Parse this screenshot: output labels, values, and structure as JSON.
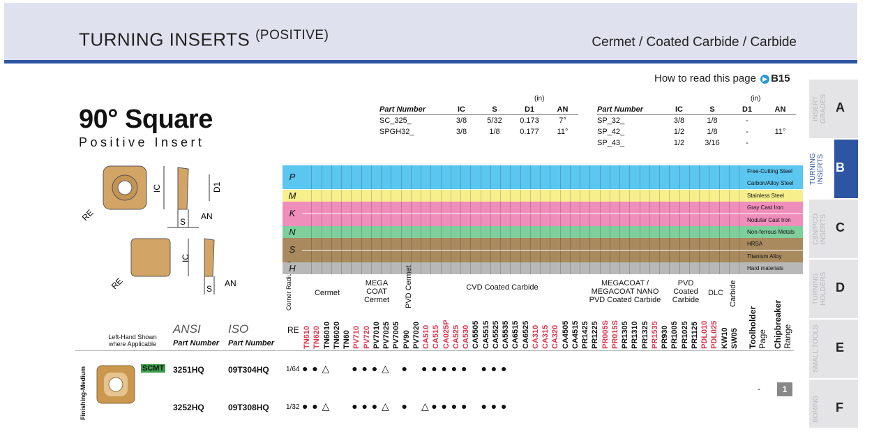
{
  "header": {
    "title": "TURNING INSERTS",
    "title_suffix": "(POSITIVE)",
    "materials": "Cermet / Coated Carbide / Carbide"
  },
  "how_to_read": {
    "text": "How to read this page",
    "ref": "B15"
  },
  "heading": {
    "title": "90° Square",
    "subtitle": "Positive Insert"
  },
  "spec_left": {
    "unit": "(in)",
    "headers": [
      "Part Number",
      "IC",
      "S",
      "D1",
      "AN"
    ],
    "rows": [
      [
        "SC_325_",
        "3/8",
        "5/32",
        "0.173",
        "7°"
      ],
      [
        "SPGH32_",
        "3/8",
        "1/8",
        "0.177",
        "11°"
      ]
    ]
  },
  "spec_right": {
    "unit": "(in)",
    "headers": [
      "Part Number",
      "IC",
      "S",
      "D1",
      "AN"
    ],
    "rows": [
      [
        "SP_32_",
        "3/8",
        "1/8",
        "-",
        ""
      ],
      [
        "SP_42_",
        "1/2",
        "1/8",
        "-",
        "11°"
      ],
      [
        "SP_43_",
        "1/2",
        "3/16",
        "-",
        ""
      ]
    ]
  },
  "tabs": [
    {
      "label": "INSERT GRADES",
      "letter": "A"
    },
    {
      "label": "TURNING INSERTS",
      "letter": "B"
    },
    {
      "label": "CBN/PCD INSERTS",
      "letter": "C"
    },
    {
      "label": "TURNING HOLDERS",
      "letter": "D"
    },
    {
      "label": "SMALL TOOLS",
      "letter": "E"
    },
    {
      "label": "BORING",
      "letter": "F"
    }
  ],
  "diagram_labels": {
    "ic": "IC",
    "d1": "D1",
    "re": "RE",
    "s": "S",
    "an": "AN"
  },
  "materials": [
    {
      "sym": "P",
      "labels": [
        "Free-Cutting Steel",
        "Carbon/Alloy Steel"
      ],
      "color": "#5bc6f0"
    },
    {
      "sym": "M",
      "labels": [
        "Stainless Steel"
      ],
      "color": "#f6ef8c"
    },
    {
      "sym": "K",
      "labels": [
        "Gray Cast Iron",
        "Nodular Cast Iron"
      ],
      "color": "#ef8dbb"
    },
    {
      "sym": "N",
      "labels": [
        "Non-ferrous Metals"
      ],
      "color": "#7fcf9d"
    },
    {
      "sym": "S",
      "labels": [
        "HRSA",
        "Titanium Alloy"
      ],
      "color": "#a88a5e"
    },
    {
      "sym": "H",
      "labels": [
        "Hard materials"
      ],
      "color": "#b8b8b8"
    }
  ],
  "groups": {
    "corner": "Corner Radius (in)",
    "cermet": "Cermet",
    "mega": "MEGA COAT Cermet",
    "pvd_cermet": "PVD Cermet",
    "cvd": "CVD Coated Carbide",
    "megacoat": "MEGACOAT / MEGACOAT NANO PVD Coated Carbide",
    "pvd": "PVD Coated Carbide",
    "dlc": "DLC",
    "carbide": "Carbide",
    "toolholder": "Toolholder",
    "toolholder_sub": "Page",
    "chipbreaker": "Chipbreaker",
    "chipbreaker_sub": "Range"
  },
  "grades": [
    "TN610",
    "TN620",
    "TN6010",
    "TN6020",
    "TN60",
    "PV710",
    "PV720",
    "PV7010",
    "PV7025",
    "PV7005",
    "PV90",
    "PV7020",
    "CA510",
    "CA515",
    "CA025P",
    "CA525",
    "CA530",
    "CA5505",
    "CA5515",
    "CA5525",
    "CA5535",
    "CA6515",
    "CA6525",
    "CA310",
    "CA315",
    "CA320",
    "CA4505",
    "CA4515",
    "PR1425",
    "PR1225",
    "PR005S",
    "PR015S",
    "PR1305",
    "PR1310",
    "PR1325",
    "PR1535",
    "PR930",
    "PR1005",
    "PR1025",
    "PR1125",
    "PDL010",
    "PDL025",
    "KW10",
    "SW05"
  ],
  "grade_colors": [
    "#e0334a",
    "#e0334a",
    "#111",
    "#111",
    "#111",
    "#e0334a",
    "#e0334a",
    "#111",
    "#111",
    "#111",
    "#111",
    "#111",
    "#e0334a",
    "#e0334a",
    "#e0334a",
    "#e0334a",
    "#e0334a",
    "#111",
    "#111",
    "#111",
    "#111",
    "#111",
    "#111",
    "#e0334a",
    "#e0334a",
    "#e0334a",
    "#111",
    "#111",
    "#111",
    "#111",
    "#e0334a",
    "#e0334a",
    "#111",
    "#111",
    "#111",
    "#e0334a",
    "#111",
    "#111",
    "#111",
    "#111",
    "#e0334a",
    "#e0334a",
    "#111",
    "#111"
  ],
  "columns": {
    "left_shown": "Left-Hand Shown where Applicable",
    "ansi": "ANSI",
    "iso": "ISO",
    "part_number": "Part Number",
    "re": "RE"
  },
  "section": "Finishing-Medium",
  "insert_code": "SCMT",
  "rows": [
    {
      "ansi": "3251HQ",
      "iso": "09T304HQ",
      "re": "1/64",
      "toolholder": "-",
      "chipbreaker": "1"
    },
    {
      "ansi": "3252HQ",
      "iso": "09T308HQ",
      "re": "1/32",
      "toolholder": "",
      "chipbreaker": ""
    }
  ],
  "row_marks": [
    [
      "●",
      "●",
      "△",
      "",
      "",
      "●",
      "●",
      "●",
      "△",
      "",
      "●",
      "",
      "●",
      "●",
      "●",
      "●",
      "●",
      "",
      "●",
      "●",
      "●"
    ],
    [
      "●",
      "●",
      "△",
      "",
      "",
      "●",
      "●",
      "●",
      "△",
      "",
      "●",
      "",
      "△",
      "●",
      "●",
      "●",
      "●",
      "",
      "●",
      "●",
      "●"
    ]
  ]
}
